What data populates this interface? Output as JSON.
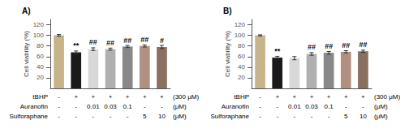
{
  "chart_data": [
    {
      "type": "bar",
      "title": "A)",
      "categories": [
        null,
        null,
        null,
        null,
        null,
        null,
        null
      ],
      "values": [
        100,
        68,
        74,
        74,
        79,
        80,
        78
      ],
      "errors": [
        1.5,
        2.5,
        2.5,
        2.0,
        2.0,
        2.0,
        3.0
      ],
      "colors": [
        "#c8b48a",
        "#1a1a1a",
        "#d8d8d8",
        "#b0b0b0",
        "#888888",
        "#b09080",
        "#8a7060"
      ],
      "sig_labels": [
        null,
        "**",
        "##",
        "##",
        "##",
        "##",
        "#"
      ],
      "ylabel": "Cell viability (%)",
      "ylim": [
        0,
        130
      ],
      "yticks": [
        20,
        40,
        60,
        80,
        100,
        120
      ],
      "grid": false,
      "tick_labels": "y",
      "x_label_rows": [
        {
          "name": "tBHP",
          "labels": [
            "-",
            "+",
            "+",
            "+",
            "+",
            "+",
            "+"
          ],
          "unit": "(300 μM)"
        },
        {
          "name": "Auranofin",
          "labels": [
            "-",
            "-",
            "0.01",
            "0.03",
            "0.1",
            "-",
            "-"
          ],
          "unit": "(μM)"
        },
        {
          "name": "Sulforaphane",
          "labels": [
            "-",
            "-",
            "-",
            "-",
            "-",
            "5",
            "10"
          ],
          "unit": "(μM)"
        }
      ]
    },
    {
      "type": "bar",
      "title": "B)",
      "categories": [
        null,
        null,
        null,
        null,
        null,
        null,
        null
      ],
      "values": [
        100,
        58,
        57,
        65,
        67,
        69,
        70
      ],
      "errors": [
        1.0,
        2.5,
        3.0,
        2.5,
        2.5,
        2.0,
        2.0
      ],
      "colors": [
        "#c8b48a",
        "#1a1a1a",
        "#d8d8d8",
        "#b0b0b0",
        "#888888",
        "#b09080",
        "#8a7060"
      ],
      "sig_labels": [
        null,
        "**",
        null,
        "##",
        "##",
        "##",
        "##"
      ],
      "ylabel": "Cell viability (%)",
      "ylim": [
        0,
        130
      ],
      "yticks": [
        20,
        40,
        60,
        80,
        100,
        120
      ],
      "grid": false,
      "tick_labels": "y",
      "x_label_rows": [
        {
          "name": "tBHP",
          "labels": [
            "-",
            "+",
            "+",
            "+",
            "+",
            "+",
            "+"
          ],
          "unit": "(300 μM)"
        },
        {
          "name": "Auranofin",
          "labels": [
            "-",
            "-",
            "0.01",
            "0.03",
            "0.1",
            "-",
            "-"
          ],
          "unit": "(μM)"
        },
        {
          "name": "Sulforaphane",
          "labels": [
            "-",
            "-",
            "-",
            "-",
            "-",
            "5",
            "10"
          ],
          "unit": "(μM)"
        }
      ]
    }
  ]
}
